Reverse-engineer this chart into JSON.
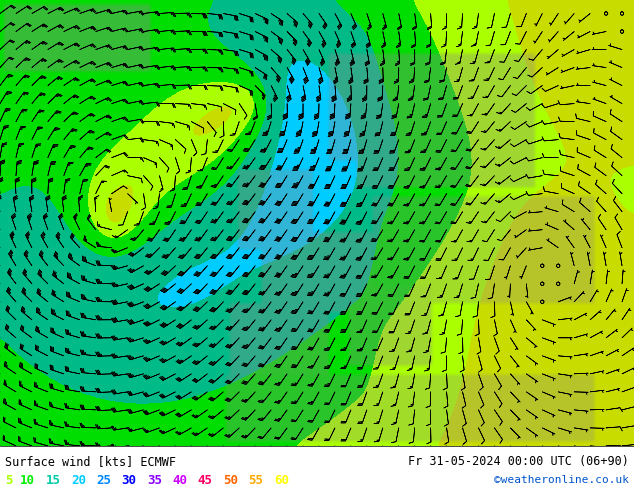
{
  "title_left": "Surface wind [kts] ECMWF",
  "title_right": "Fr 31-05-2024 00:00 UTC (06+90)",
  "credit": "©weatheronline.co.uk",
  "legend_values": [
    "5",
    "10",
    "15",
    "20",
    "25",
    "30",
    "35",
    "40",
    "45",
    "50",
    "55",
    "60"
  ],
  "legend_colors": [
    "#aaff00",
    "#00ee00",
    "#00ccaa",
    "#00ccff",
    "#0088ff",
    "#0000ff",
    "#8800ff",
    "#cc00ff",
    "#ff0066",
    "#ff6600",
    "#ffaa00",
    "#ffff00"
  ],
  "bg_color": "#ffffff",
  "wind_color_levels": [
    0,
    5,
    10,
    15,
    20,
    25,
    30,
    35,
    40,
    45,
    50,
    55,
    60,
    70,
    150
  ],
  "wind_colors": [
    "#c8dc00",
    "#aaff00",
    "#00dd00",
    "#00bb88",
    "#00ccff",
    "#0088ff",
    "#0044ff",
    "#0000ee",
    "#6600cc",
    "#cc00ff",
    "#ff0066",
    "#ff5500",
    "#ffaa00",
    "#ffff00"
  ],
  "figsize": [
    6.34,
    4.9
  ],
  "dpi": 100
}
